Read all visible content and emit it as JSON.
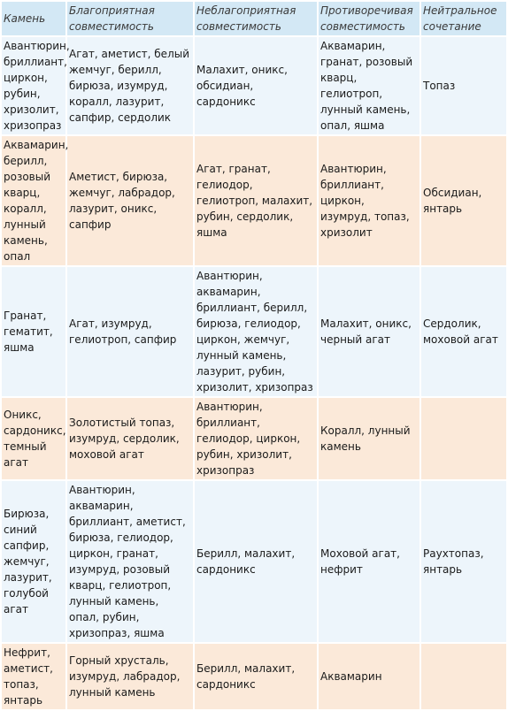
{
  "headers": [
    "Камень",
    "Благоприятная совместимость",
    "Неблагоприятная совместимость",
    "Противоречивая совместимость",
    "Нейтральное сочетание"
  ],
  "rows": [
    [
      "Авантюрин, бриллиант, циркон, рубин, хризолит, хризопраз",
      "Агат, аметист, белый жемчуг, берилл, бирюза, изумруд, коралл, лазурит, сапфир, сердолик",
      "Малахит, оникс, обсидиан, сардоникс",
      "Аквамарин, гранат, розовый кварц, гелиотроп, лунный камень, опал, яшма",
      "Топаз"
    ],
    [
      "Аквамарин, берилл, розовый кварц, коралл, лунный камень, опал",
      "Аметист, бирюза, жемчуг, лабрадор, лазурит, оникс, сапфир",
      "Агат, гранат, гелиодор, гелиотроп, малахит, рубин, сердолик, яшма",
      "Авантюрин, бриллиант, циркон, изумруд, топаз, хризолит",
      "Обсидиан, янтарь"
    ],
    [
      "Гранат, гематит, яшма",
      "Агат, изумруд, гелиотроп, сапфир",
      "Авантюрин, аквамарин, бриллиант, берилл, бирюза, гелиодор, циркон, жемчуг, лунный камень, лазурит, рубин, хризолит, хризопраз",
      "Малахит, оникс, черный агат",
      "Сердолик, моховой агат"
    ],
    [
      "Оникс, сардоникс, темный агат",
      "Золотистый топаз, изумруд, сердолик, моховой агат",
      "Авантюрин, бриллиант, гелиодор, циркон, рубин, хризолит, хризопраз",
      "Коралл, лунный камень",
      ""
    ],
    [
      "Бирюза, синий сапфир, жемчуг, лазурит, голубой агат",
      "Авантюрин, аквамарин, бриллиант, аметист, бирюза, гелиодор, циркон, гранат, изумруд, розовый кварц, гелиотроп, лунный камень, опал, рубин, хризопраз, яшма",
      "Берилл, малахит, сардоникс",
      "Моховой агат, нефрит",
      "Раухтопаз, янтарь"
    ],
    [
      "Нефрит, аметист, топаз, янтарь",
      "Горный хрусталь, изумруд, лабрадор, лунный камень",
      "Берилл, малахит, сардоникс",
      "Аквамарин",
      ""
    ]
  ]
}
